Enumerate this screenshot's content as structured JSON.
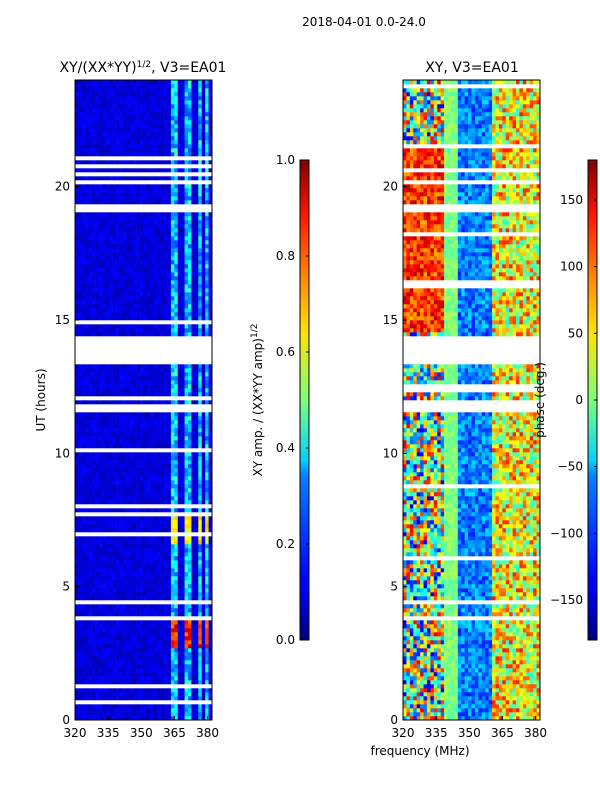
{
  "suptitle": "2018-04-01 0.0-24.0",
  "xlabel": "frequency (MHz)",
  "colors": {
    "blank_row": "#ffffff",
    "frame": "#000000"
  },
  "chart_data": [
    {
      "type": "heatmap",
      "title_main": "XY/(XX*YY)",
      "title_sup": "1/2",
      "title_tail": ", V3=EA01",
      "xlim": [
        320,
        382
      ],
      "ylim": [
        0,
        24
      ],
      "xticks": [
        320,
        335,
        350,
        365,
        380
      ],
      "yticks": [
        0,
        5,
        10,
        15,
        20
      ],
      "ylabel": "UT (hours)",
      "channel_bands_mhz": [
        [
          363,
          366
        ],
        [
          369,
          372
        ],
        [
          376,
          378
        ],
        [
          379,
          381
        ]
      ],
      "flagged_ut_ranges": [
        [
          11.6,
          11.8
        ],
        [
          13.4,
          14.4
        ],
        [
          19.1,
          19.3
        ],
        [
          20.1,
          20.3
        ],
        [
          4.35,
          4.5
        ]
      ],
      "colorbar": {
        "label_main": "XY amp. / (XX*YY amp)",
        "label_sup": "1/2",
        "range": [
          0.0,
          1.0
        ],
        "ticks": [
          "0.0",
          "0.2",
          "0.4",
          "0.6",
          "0.8",
          "1.0"
        ]
      }
    },
    {
      "type": "heatmap",
      "title": "XY, V3=EA01",
      "xlim": [
        320,
        382
      ],
      "ylim": [
        0,
        24
      ],
      "xticks": [
        320,
        335,
        350,
        365,
        380
      ],
      "yticks": [
        0,
        5,
        10,
        15,
        20
      ],
      "flagged_ut_ranges": [
        [
          11.6,
          11.8
        ],
        [
          13.4,
          14.4
        ],
        [
          19.1,
          19.3
        ],
        [
          20.1,
          20.3
        ],
        [
          4.35,
          4.5
        ]
      ],
      "colorbar": {
        "label": "phase (deg.)",
        "range": [
          -180,
          180
        ],
        "ticks": [
          "150",
          "100",
          "50",
          "0",
          "−50",
          "−100",
          "−150"
        ]
      }
    }
  ]
}
